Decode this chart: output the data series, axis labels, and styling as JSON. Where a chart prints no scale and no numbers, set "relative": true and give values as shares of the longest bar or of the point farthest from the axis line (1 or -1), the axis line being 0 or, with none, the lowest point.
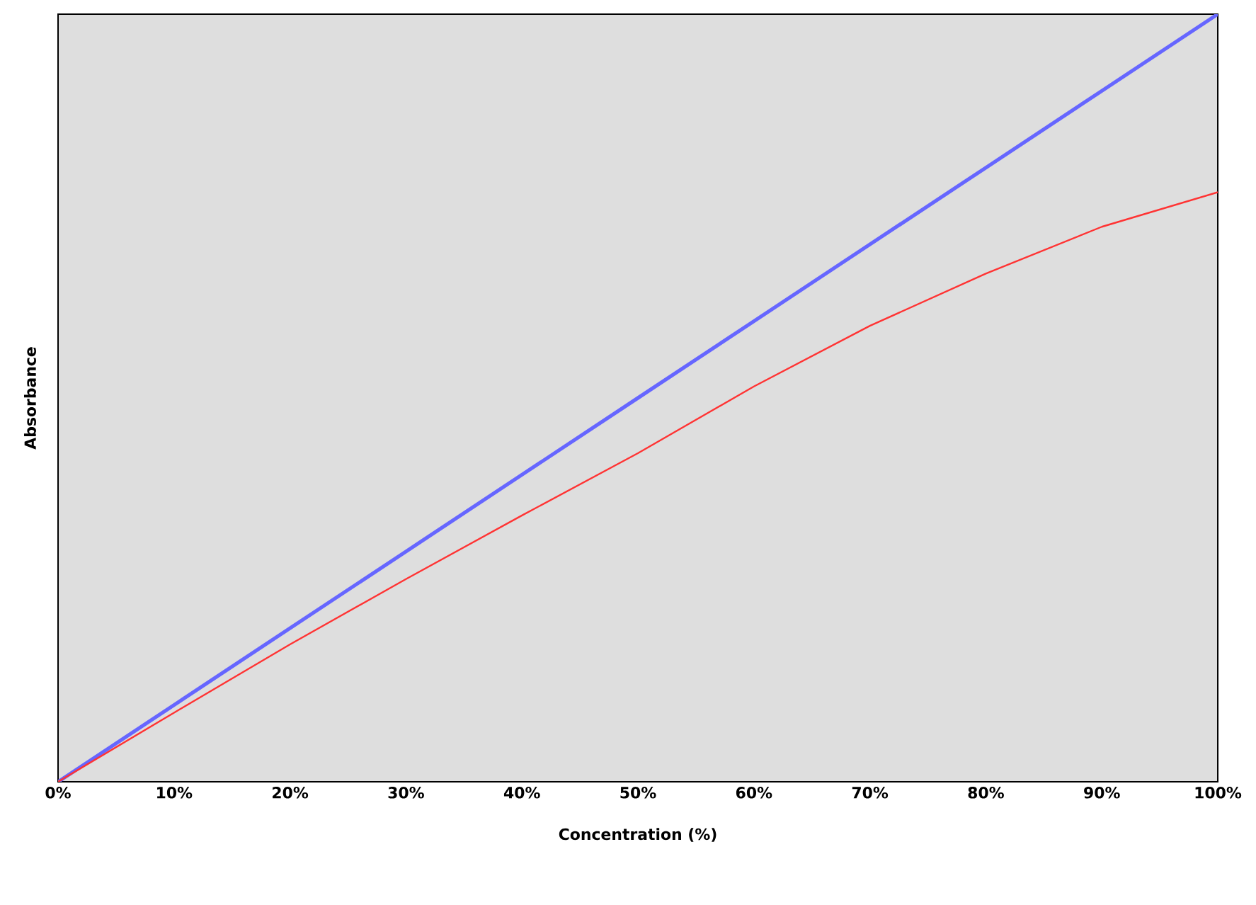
{
  "chart_data": {
    "type": "line",
    "xlabel": "Concentration (%)",
    "ylabel": "Absorbance",
    "relative": true,
    "xlim": [
      0,
      100
    ],
    "xticks": [
      {
        "value": 0,
        "label": "0%"
      },
      {
        "value": 10,
        "label": "10%"
      },
      {
        "value": 20,
        "label": "20%"
      },
      {
        "value": 30,
        "label": "30%"
      },
      {
        "value": 40,
        "label": "40%"
      },
      {
        "value": 50,
        "label": "50%"
      },
      {
        "value": 60,
        "label": "60%"
      },
      {
        "value": 70,
        "label": "70%"
      },
      {
        "value": 80,
        "label": "80%"
      },
      {
        "value": 90,
        "label": "90%"
      },
      {
        "value": 100,
        "label": "100%"
      }
    ],
    "x": [
      0,
      10,
      20,
      30,
      40,
      50,
      60,
      70,
      80,
      90,
      100
    ],
    "series": [
      {
        "color": "#6666ff",
        "values": [
          0,
          0.1,
          0.2,
          0.3,
          0.4,
          0.5,
          0.6,
          0.7,
          0.8,
          0.9,
          1
        ]
      },
      {
        "color": "#ff3333",
        "values": [
          0,
          0.09,
          0.179,
          0.264,
          0.347,
          0.428,
          0.515,
          0.594,
          0.662,
          0.723,
          0.768
        ]
      }
    ],
    "grid": false,
    "marker": "none",
    "line_style": "solid"
  }
}
